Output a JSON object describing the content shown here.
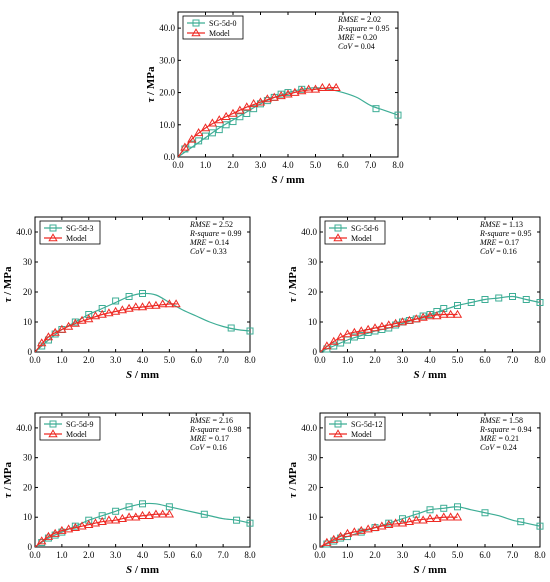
{
  "chart_data": [
    {
      "type": "line",
      "xlabel_var": "S",
      "xlabel_unit": " / mm",
      "ylabel_var": "τ",
      "ylabel_unit": " / MPa",
      "xlim": [
        0,
        8
      ],
      "ylim": [
        0,
        45
      ],
      "xticks": [
        "0.0",
        "1.0",
        "2.0",
        "3.0",
        "4.0",
        "5.0",
        "6.0",
        "7.0",
        "8.0"
      ],
      "yticks": [
        "0.0",
        "10.0",
        "20.0",
        "30.0",
        "40.0"
      ],
      "stats": [
        {
          "label": "RMSE",
          "value": " = 2.02"
        },
        {
          "label": "R-square",
          "value": " = 0.95"
        },
        {
          "label": "MRE",
          "value": " = 0.20"
        },
        {
          "label": "CoV",
          "value": " = 0.04"
        }
      ],
      "series": [
        {
          "name": "SG-5d-0",
          "marker": "square",
          "color": "#3dad95",
          "markers_x": [
            0.25,
            0.5,
            0.75,
            1.0,
            1.25,
            1.5,
            1.75,
            2.0,
            2.25,
            2.5,
            2.75,
            3.0,
            3.25,
            3.5,
            3.75,
            4.0,
            4.5,
            7.2,
            8.0
          ],
          "markers_y": [
            2.5,
            4,
            5,
            6.5,
            7.5,
            8.5,
            10,
            11,
            12.5,
            13.5,
            15,
            16.5,
            17.5,
            18.5,
            19.5,
            20,
            21,
            15,
            13
          ],
          "curve_x": [
            0,
            0.5,
            1,
            1.5,
            2,
            2.5,
            3,
            3.5,
            4,
            4.5,
            5,
            5.5,
            6,
            6.5,
            7,
            7.5,
            8
          ],
          "curve_y": [
            0,
            3,
            6,
            9,
            11.5,
            14,
            16.5,
            18.5,
            20,
            21,
            21.5,
            21,
            20,
            18.5,
            16,
            14.5,
            13
          ]
        },
        {
          "name": "Model",
          "marker": "triangle",
          "color": "#ee2a24",
          "markers_x": [
            0.25,
            0.5,
            0.75,
            1.0,
            1.25,
            1.5,
            1.75,
            2.0,
            2.25,
            2.5,
            2.75,
            3.0,
            3.25,
            3.5,
            3.75,
            4.0,
            4.25,
            4.5,
            4.75,
            5.0,
            5.25,
            5.5,
            5.75
          ],
          "markers_y": [
            3,
            5.5,
            7.5,
            9,
            10.5,
            11.5,
            12.5,
            13.5,
            14.5,
            15.5,
            16.5,
            17,
            18,
            18.5,
            19,
            19.5,
            20,
            20.5,
            21,
            21,
            21.5,
            21.5,
            21.5
          ],
          "curve_x": [
            0,
            0.5,
            1,
            1.5,
            2,
            2.5,
            3,
            3.5,
            4,
            4.5,
            5,
            5.5,
            5.8
          ],
          "curve_y": [
            0,
            5.5,
            9,
            11.5,
            13.5,
            15.5,
            17,
            18.5,
            19.5,
            20.5,
            21,
            21.5,
            21.5
          ]
        }
      ]
    },
    {
      "type": "line",
      "xlabel_var": "S",
      "xlabel_unit": " / mm",
      "ylabel_var": "τ",
      "ylabel_unit": " / MPa",
      "xlim": [
        0,
        8
      ],
      "ylim": [
        0,
        45
      ],
      "xticks": [
        "0.0",
        "1.0",
        "2.0",
        "3.0",
        "4.0",
        "5.0",
        "6.0",
        "7.0",
        "8.0"
      ],
      "yticks": [
        "0",
        "10",
        "20",
        "30",
        "40.0"
      ],
      "stats": [
        {
          "label": "RMSE",
          "value": " = 2.52"
        },
        {
          "label": "R-square",
          "value": " = 0.99"
        },
        {
          "label": "MRE",
          "value": " = 0.14"
        },
        {
          "label": "CoV",
          "value": " = 0.33"
        }
      ],
      "series": [
        {
          "name": "SG-5d-3",
          "marker": "square",
          "color": "#3dad95",
          "markers_x": [
            0.25,
            0.5,
            0.75,
            1.0,
            1.5,
            2.0,
            2.5,
            3.0,
            3.5,
            4.0,
            7.3,
            8.0
          ],
          "markers_y": [
            2,
            4,
            6,
            7.5,
            10,
            12.5,
            14.5,
            17,
            18.5,
            19.5,
            8,
            7
          ],
          "curve_x": [
            0,
            0.5,
            1,
            1.5,
            2,
            2.5,
            3,
            3.5,
            4,
            4.5,
            5,
            5.5,
            6,
            6.5,
            7,
            7.5,
            8
          ],
          "curve_y": [
            0,
            4,
            7.5,
            10,
            12.5,
            14.5,
            16.5,
            18.5,
            19.5,
            19,
            16.5,
            14,
            12,
            10,
            8.5,
            7.5,
            7
          ]
        },
        {
          "name": "Model",
          "marker": "triangle",
          "color": "#ee2a24",
          "markers_x": [
            0.25,
            0.5,
            0.75,
            1.0,
            1.25,
            1.5,
            1.75,
            2.0,
            2.25,
            2.5,
            2.75,
            3.0,
            3.25,
            3.5,
            3.75,
            4.0,
            4.25,
            4.5,
            4.75,
            5.0,
            5.25
          ],
          "markers_y": [
            3,
            5,
            6.5,
            7.5,
            8.5,
            9.5,
            10.5,
            11,
            12,
            12.5,
            13,
            13.5,
            14,
            14.5,
            15,
            15,
            15.5,
            15.5,
            16,
            16,
            16
          ],
          "curve_x": [
            0,
            0.5,
            1,
            1.5,
            2,
            2.5,
            3,
            3.5,
            4,
            4.5,
            5,
            5.3
          ],
          "curve_y": [
            0,
            5,
            7.5,
            9.5,
            11,
            12.5,
            13.5,
            14.5,
            15,
            15.5,
            16,
            16
          ]
        }
      ]
    },
    {
      "type": "line",
      "xlabel_var": "S",
      "xlabel_unit": " / mm",
      "ylabel_var": "τ",
      "ylabel_unit": " / MPa",
      "xlim": [
        0,
        8
      ],
      "ylim": [
        0,
        45
      ],
      "xticks": [
        "0.0",
        "1.0",
        "2.0",
        "3.0",
        "4.0",
        "5.0",
        "6.0",
        "7.0",
        "8.0"
      ],
      "yticks": [
        "0",
        "10",
        "20",
        "30",
        "40.0"
      ],
      "stats": [
        {
          "label": "RMSE",
          "value": " = 1.13"
        },
        {
          "label": "R-square",
          "value": " = 0.95"
        },
        {
          "label": "MRE",
          "value": " = 0.17"
        },
        {
          "label": "CoV",
          "value": " = 0.16"
        }
      ],
      "series": [
        {
          "name": "SG-5d-6",
          "marker": "square",
          "color": "#3dad95",
          "markers_x": [
            0.25,
            0.5,
            0.75,
            1.0,
            1.25,
            1.5,
            1.75,
            2.0,
            2.25,
            2.5,
            2.75,
            3.0,
            3.25,
            3.5,
            3.75,
            4.0,
            4.25,
            4.5,
            5.0,
            5.5,
            6.0,
            6.5,
            7.0,
            7.5,
            8.0
          ],
          "markers_y": [
            1,
            2,
            3,
            4,
            5,
            5.5,
            6.5,
            7,
            7.5,
            8,
            9,
            10,
            10.5,
            11,
            12,
            12.5,
            13.5,
            14.5,
            15.5,
            16.5,
            17.5,
            18,
            18.5,
            17.5,
            16.5
          ],
          "curve_x": [
            0,
            0.5,
            1,
            1.5,
            2,
            2.5,
            3,
            3.5,
            4,
            4.5,
            5,
            5.5,
            6,
            6.5,
            7,
            7.5,
            8
          ],
          "curve_y": [
            0,
            2,
            4,
            5.5,
            7,
            8,
            9.5,
            11,
            12.5,
            14,
            15.5,
            16.5,
            17.5,
            18,
            18.5,
            17.5,
            16.5
          ]
        },
        {
          "name": "Model",
          "marker": "triangle",
          "color": "#ee2a24",
          "markers_x": [
            0.25,
            0.5,
            0.75,
            1.0,
            1.25,
            1.5,
            1.75,
            2.0,
            2.25,
            2.5,
            2.75,
            3.0,
            3.25,
            3.5,
            3.75,
            4.0,
            4.25,
            4.5,
            4.75,
            5.0
          ],
          "markers_y": [
            2,
            3.5,
            5,
            6,
            6.5,
            7,
            7.5,
            8,
            8.5,
            9,
            9.5,
            10,
            10.5,
            11,
            11.5,
            12,
            12,
            12.5,
            12.5,
            12.5
          ],
          "curve_x": [
            0,
            0.5,
            1,
            1.5,
            2,
            2.5,
            3,
            3.5,
            4,
            4.5,
            5
          ],
          "curve_y": [
            0,
            3.5,
            6,
            7,
            8,
            9,
            10,
            11,
            12,
            12.5,
            12.5
          ]
        }
      ]
    },
    {
      "type": "line",
      "xlabel_var": "S",
      "xlabel_unit": " / mm",
      "ylabel_var": "τ",
      "ylabel_unit": " / MPa",
      "xlim": [
        0,
        8
      ],
      "ylim": [
        0,
        45
      ],
      "xticks": [
        "0.0",
        "1.0",
        "2.0",
        "3.0",
        "4.0",
        "5.0",
        "6.0",
        "7.0",
        "8.0"
      ],
      "yticks": [
        "0",
        "10",
        "20",
        "30",
        "40.0"
      ],
      "stats": [
        {
          "label": "RMSE",
          "value": " = 2.16"
        },
        {
          "label": "R-square",
          "value": " = 0.98"
        },
        {
          "label": "MRE",
          "value": " = 0.17"
        },
        {
          "label": "CoV",
          "value": " = 0.16"
        }
      ],
      "series": [
        {
          "name": "SG-5d-9",
          "marker": "square",
          "color": "#3dad95",
          "markers_x": [
            0.25,
            0.5,
            0.75,
            1.0,
            1.5,
            2.0,
            2.5,
            3.0,
            3.5,
            4.0,
            5.0,
            6.3,
            7.5,
            8.0
          ],
          "markers_y": [
            1.5,
            3,
            4,
            5,
            7,
            9,
            10.5,
            12,
            13.5,
            14.5,
            13.5,
            11,
            9,
            8
          ],
          "curve_x": [
            0,
            0.5,
            1,
            1.5,
            2,
            2.5,
            3,
            3.5,
            4,
            4.5,
            5,
            5.5,
            6,
            6.5,
            7,
            7.5,
            8
          ],
          "curve_y": [
            0,
            3,
            5,
            7,
            9,
            10.5,
            12,
            13.5,
            14.5,
            14.5,
            13.5,
            12.5,
            11.5,
            10.5,
            9.5,
            9,
            8
          ]
        },
        {
          "name": "Model",
          "marker": "triangle",
          "color": "#ee2a24",
          "markers_x": [
            0.25,
            0.5,
            0.75,
            1.0,
            1.25,
            1.5,
            1.75,
            2.0,
            2.25,
            2.5,
            2.75,
            3.0,
            3.25,
            3.5,
            3.75,
            4.0,
            4.25,
            4.5,
            4.75,
            5.0
          ],
          "markers_y": [
            2,
            3.5,
            4.5,
            5.5,
            6,
            6.5,
            7,
            7.5,
            8,
            8.5,
            9,
            9,
            9.5,
            10,
            10,
            10.5,
            10.5,
            11,
            11,
            11
          ],
          "curve_x": [
            0,
            0.5,
            1,
            1.5,
            2,
            2.5,
            3,
            3.5,
            4,
            4.5,
            5
          ],
          "curve_y": [
            0,
            3.5,
            5.5,
            6.5,
            7.5,
            8.5,
            9,
            10,
            10.5,
            11,
            11
          ]
        }
      ]
    },
    {
      "type": "line",
      "xlabel_var": "S",
      "xlabel_unit": " / mm",
      "ylabel_var": "τ",
      "ylabel_unit": " / MPa",
      "xlim": [
        0,
        8
      ],
      "ylim": [
        0,
        45
      ],
      "xticks": [
        "0.0",
        "1.0",
        "2.0",
        "3.0",
        "4.0",
        "5.0",
        "6.0",
        "7.0",
        "8.0"
      ],
      "yticks": [
        "0",
        "10",
        "20",
        "30",
        "40.0"
      ],
      "stats": [
        {
          "label": "RMSE",
          "value": " = 1.58"
        },
        {
          "label": "R-square",
          "value": " = 0.94"
        },
        {
          "label": "MRE",
          "value": " = 0.21"
        },
        {
          "label": "CoV",
          "value": " = 0.24"
        }
      ],
      "series": [
        {
          "name": "SG-5d-12",
          "marker": "square",
          "color": "#3dad95",
          "markers_x": [
            0.25,
            0.5,
            0.75,
            1.0,
            1.5,
            2.0,
            2.5,
            3.0,
            3.5,
            4.0,
            4.5,
            5.0,
            6.0,
            7.3,
            8.0
          ],
          "markers_y": [
            1,
            2,
            3,
            3.5,
            5,
            6.5,
            8,
            9.5,
            11,
            12.5,
            13,
            13.5,
            11.5,
            8.5,
            7
          ],
          "curve_x": [
            0,
            0.5,
            1,
            1.5,
            2,
            2.5,
            3,
            3.5,
            4,
            4.5,
            5,
            5.5,
            6,
            6.5,
            7,
            7.5,
            8
          ],
          "curve_y": [
            0,
            2,
            3.5,
            5,
            6.5,
            8,
            9.5,
            11,
            12.5,
            13,
            13.5,
            12.5,
            11.5,
            10.5,
            9,
            8,
            7
          ]
        },
        {
          "name": "Model",
          "marker": "triangle",
          "color": "#ee2a24",
          "markers_x": [
            0.25,
            0.5,
            0.75,
            1.0,
            1.25,
            1.5,
            1.75,
            2.0,
            2.25,
            2.5,
            2.75,
            3.0,
            3.25,
            3.5,
            3.75,
            4.0,
            4.25,
            4.5,
            4.75,
            5.0
          ],
          "markers_y": [
            1.5,
            2.5,
            3.5,
            4.5,
            5,
            5.5,
            6,
            6.5,
            7,
            7.5,
            8,
            8,
            8.5,
            9,
            9,
            9.5,
            9.5,
            10,
            10,
            10
          ],
          "curve_x": [
            0,
            0.5,
            1,
            1.5,
            2,
            2.5,
            3,
            3.5,
            4,
            4.5,
            5
          ],
          "curve_y": [
            0,
            2.5,
            4.5,
            5.5,
            6.5,
            7.5,
            8,
            9,
            9.5,
            10,
            10
          ]
        }
      ]
    }
  ]
}
